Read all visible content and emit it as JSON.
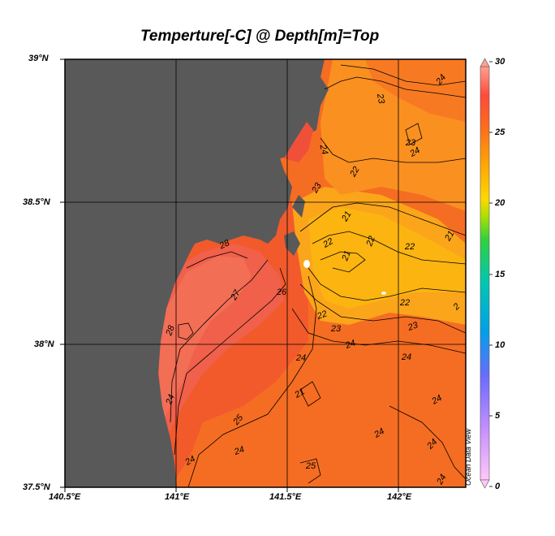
{
  "title": "Temperture[-C] @ Depth[m]=Top",
  "watermark": "Ocean Data View",
  "latitude_labels": [
    "39°N",
    "38.5°N",
    "38°N",
    "37.5°N"
  ],
  "longitude_labels": [
    "140.5°E",
    "141°E",
    "141.5°E",
    "142°E"
  ],
  "colorbar": {
    "ticks": [
      "30",
      "25",
      "20",
      "15",
      "10",
      "5",
      "0"
    ],
    "range": [
      0,
      30
    ],
    "colors": [
      "#ffb0f0",
      "#c080ff",
      "#5070ff",
      "#00a0f0",
      "#00c8c0",
      "#20d040",
      "#a0e000",
      "#ffd000",
      "#ffa000",
      "#ff6a20",
      "#ff4040",
      "#ff9080"
    ]
  },
  "map": {
    "land_color": "#595959",
    "lat_range": [
      37.5,
      39.0
    ],
    "lon_range": [
      140.5,
      142.3
    ]
  },
  "contour_labels": [
    "24",
    "23",
    "24",
    "23",
    "24",
    "22",
    "23",
    "21",
    "21",
    "22",
    "22",
    "28",
    "22",
    "21",
    "27",
    "26",
    "22",
    "2",
    "28",
    "23",
    "22",
    "23",
    "24",
    "24",
    "24",
    "24",
    "21",
    "24",
    "25",
    "24",
    "24",
    "24",
    "25",
    "24",
    "24"
  ]
}
